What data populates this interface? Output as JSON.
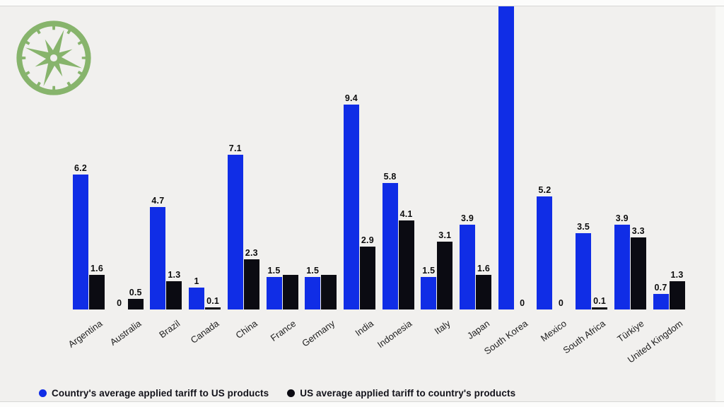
{
  "page": {
    "background_color": "#f1f0ee",
    "logo_color": "#87b46c"
  },
  "chart_data": {
    "type": "bar",
    "title": "",
    "xlabel": "",
    "ylabel": "",
    "ylim": [
      0,
      13.9
    ],
    "grid": false,
    "y_axis_visible": false,
    "legend_position": "bottom",
    "categories": [
      "Argentina",
      "Australia",
      "Brazil",
      "Canada",
      "China",
      "France",
      "Germany",
      "India",
      "Indonesia",
      "Italy",
      "Japan",
      "South Korea",
      "Mexico",
      "South Africa",
      "Türkiye",
      "United Kingdom"
    ],
    "series": [
      {
        "name": "Country's average applied tariff to US products",
        "color": "#102de6",
        "values": [
          6.2,
          0,
          4.7,
          1,
          7.1,
          1.5,
          1.5,
          9.4,
          5.8,
          1.5,
          3.9,
          14.2,
          5.2,
          3.5,
          3.9,
          0.7
        ],
        "labels": [
          "6.2",
          "0",
          "4.7",
          "1",
          "7.1",
          "1.5",
          "1.5",
          "9.4",
          "5.8",
          "1.5",
          "3.9",
          "",
          "5.2",
          "3.5",
          "3.9",
          "0.7"
        ]
      },
      {
        "name": "US average applied tariff to country's products",
        "color": "#0b0b12",
        "values": [
          1.6,
          0.5,
          1.3,
          0.1,
          2.3,
          1.6,
          1.6,
          2.9,
          4.1,
          3.1,
          1.6,
          0,
          0,
          0.1,
          3.3,
          1.3
        ],
        "labels": [
          "1.6",
          "0.5",
          "1.3",
          "0.1",
          "2.3",
          "",
          "",
          "2.9",
          "4.1",
          "3.1",
          "1.6",
          "0",
          "0",
          "0.1",
          "3.3",
          "1.3"
        ]
      }
    ],
    "notes": "South Korea blue bar is clipped at the top edge of the frame; its value label is not visible. France and Germany black bars have no visible value labels."
  },
  "legend": {
    "items": [
      {
        "label": "Country's average applied tariff to US products",
        "color": "#102de6"
      },
      {
        "label": "US average applied tariff to country's products",
        "color": "#0b0b12"
      }
    ]
  }
}
